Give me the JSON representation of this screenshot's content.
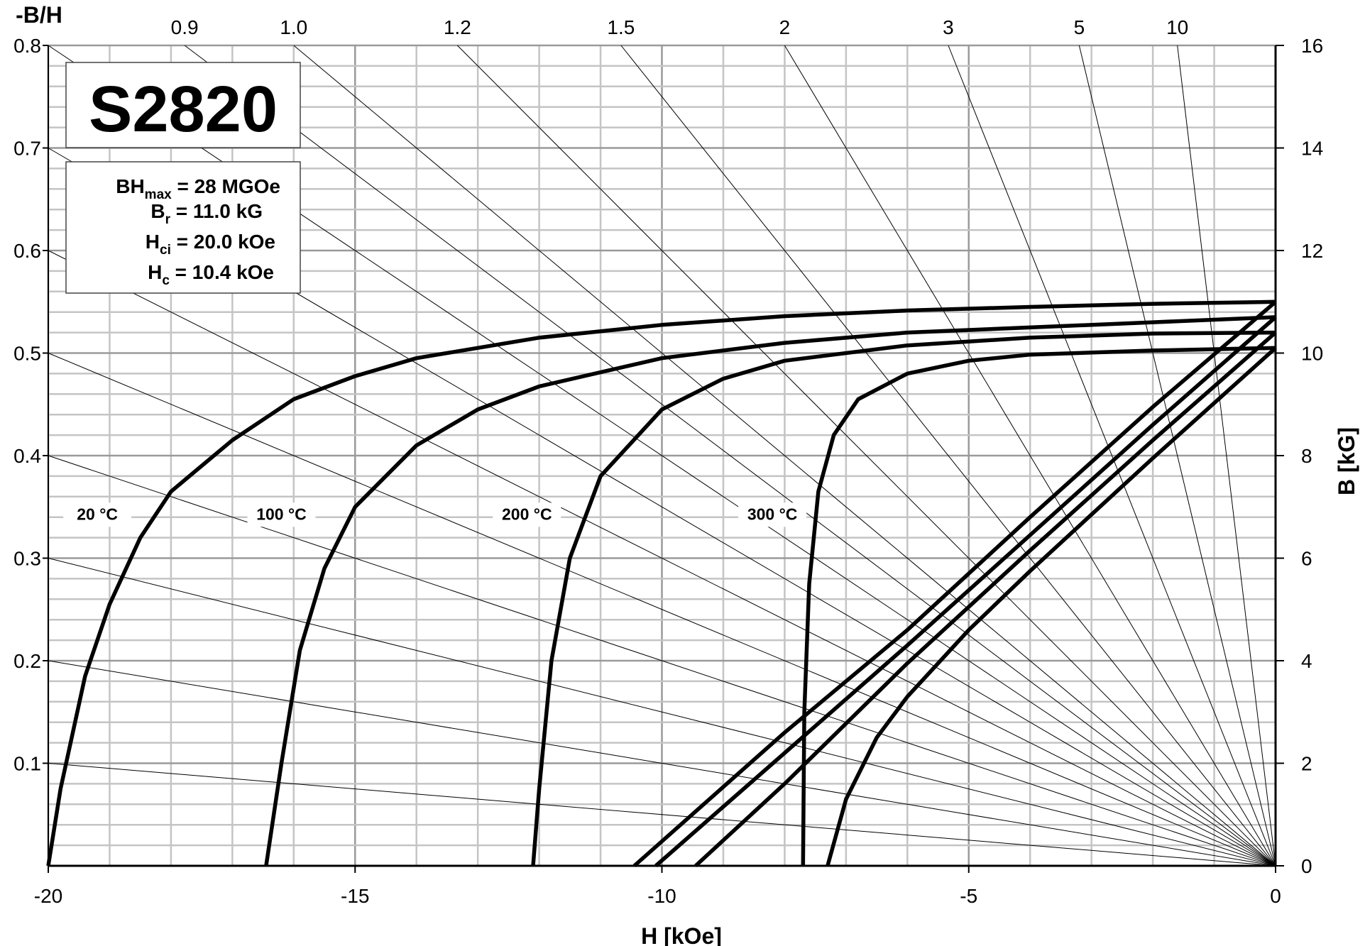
{
  "chart_data": {
    "type": "line",
    "title": "S2820",
    "xlabel": "H [kOe]",
    "ylabel": "B [kG]",
    "left_axis_title": "-B/H",
    "xlim": [
      -20,
      0
    ],
    "ylim": [
      0,
      16
    ],
    "x_ticks": [
      "-20",
      "-15",
      "-10",
      "-5",
      "0"
    ],
    "y_ticks": [
      "0",
      "2",
      "4",
      "6",
      "8",
      "10",
      "12",
      "14",
      "16"
    ],
    "permeance_left_ticks": [
      "0.1",
      "0.2",
      "0.3",
      "0.4",
      "0.5",
      "0.6",
      "0.7",
      "0.8"
    ],
    "permeance_top_ticks": [
      "0.9",
      "1.0",
      "1.2",
      "1.5",
      "2",
      "3",
      "5",
      "10"
    ],
    "grid": true,
    "properties": {
      "bhmax_label": "BH",
      "bhmax_sub": "max",
      "bhmax_value": " = 28 MGOe",
      "br_label": "B",
      "br_sub": "r",
      "br_value": " = 11.0 kG",
      "hci_label": "H",
      "hci_sub": "ci",
      "hci_value": " = 20.0 kOe",
      "hc_label": "H",
      "hc_sub": "c",
      "hc_value": " = 10.4 kOe"
    },
    "series": [
      {
        "name": "20 °C",
        "label_at": [
          -19.2,
          6.75
        ],
        "B_curve": [
          [
            -20,
            0
          ],
          [
            -19.8,
            1.5
          ],
          [
            -19.4,
            3.7
          ],
          [
            -19,
            5.1
          ],
          [
            -18.5,
            6.4
          ],
          [
            -18,
            7.3
          ],
          [
            -17,
            8.3
          ],
          [
            -16,
            9.1
          ],
          [
            -15,
            9.55
          ],
          [
            -14,
            9.9
          ],
          [
            -12,
            10.3
          ],
          [
            -10,
            10.55
          ],
          [
            -8,
            10.72
          ],
          [
            -6,
            10.83
          ],
          [
            -4,
            10.9
          ],
          [
            -2,
            10.96
          ],
          [
            0,
            11.0
          ]
        ],
        "J_line": [
          [
            -10.45,
            0
          ],
          [
            -8,
            2.6
          ],
          [
            -6,
            4.6
          ],
          [
            -4,
            6.8
          ],
          [
            -2,
            8.95
          ],
          [
            0,
            11.0
          ]
        ]
      },
      {
        "name": "100 °C",
        "label_at": [
          -16.2,
          6.75
        ],
        "B_curve": [
          [
            -16.45,
            0
          ],
          [
            -16.2,
            2.0
          ],
          [
            -15.9,
            4.2
          ],
          [
            -15.5,
            5.8
          ],
          [
            -15,
            7.0
          ],
          [
            -14,
            8.2
          ],
          [
            -13,
            8.9
          ],
          [
            -12,
            9.35
          ],
          [
            -10,
            9.9
          ],
          [
            -8,
            10.2
          ],
          [
            -6,
            10.4
          ],
          [
            -4,
            10.5
          ],
          [
            -2,
            10.6
          ],
          [
            0,
            10.7
          ]
        ],
        "J_line": [
          [
            -10.1,
            0
          ],
          [
            -8,
            2.2
          ],
          [
            -6,
            4.3
          ],
          [
            -4,
            6.45
          ],
          [
            -2,
            8.6
          ],
          [
            0,
            10.7
          ]
        ]
      },
      {
        "name": "200 °C",
        "label_at": [
          -12.2,
          6.75
        ],
        "B_curve": [
          [
            -12.1,
            0
          ],
          [
            -12.0,
            1.5
          ],
          [
            -11.8,
            4.0
          ],
          [
            -11.5,
            6.0
          ],
          [
            -11,
            7.6
          ],
          [
            -10,
            8.9
          ],
          [
            -9,
            9.5
          ],
          [
            -8,
            9.85
          ],
          [
            -6,
            10.15
          ],
          [
            -4,
            10.3
          ],
          [
            -2,
            10.38
          ],
          [
            0,
            10.4
          ]
        ],
        "J_line": [
          [
            -9.45,
            0
          ],
          [
            -8,
            1.6
          ],
          [
            -6,
            3.95
          ],
          [
            -4,
            6.15
          ],
          [
            -2,
            8.3
          ],
          [
            0,
            10.4
          ]
        ]
      },
      {
        "name": "300 °C",
        "label_at": [
          -8.2,
          6.75
        ],
        "B_curve": [
          [
            -7.7,
            0
          ],
          [
            -7.68,
            3.0
          ],
          [
            -7.6,
            5.5
          ],
          [
            -7.45,
            7.3
          ],
          [
            -7.2,
            8.4
          ],
          [
            -6.8,
            9.1
          ],
          [
            -6,
            9.6
          ],
          [
            -5,
            9.85
          ],
          [
            -4,
            9.97
          ],
          [
            -2,
            10.05
          ],
          [
            0,
            10.1
          ]
        ],
        "J_line": [
          [
            -7.3,
            0
          ],
          [
            -7,
            1.3
          ],
          [
            -6.5,
            2.5
          ],
          [
            -6,
            3.3
          ],
          [
            -5,
            4.6
          ],
          [
            -4,
            5.75
          ],
          [
            -2,
            7.95
          ],
          [
            0,
            10.1
          ]
        ]
      }
    ]
  }
}
